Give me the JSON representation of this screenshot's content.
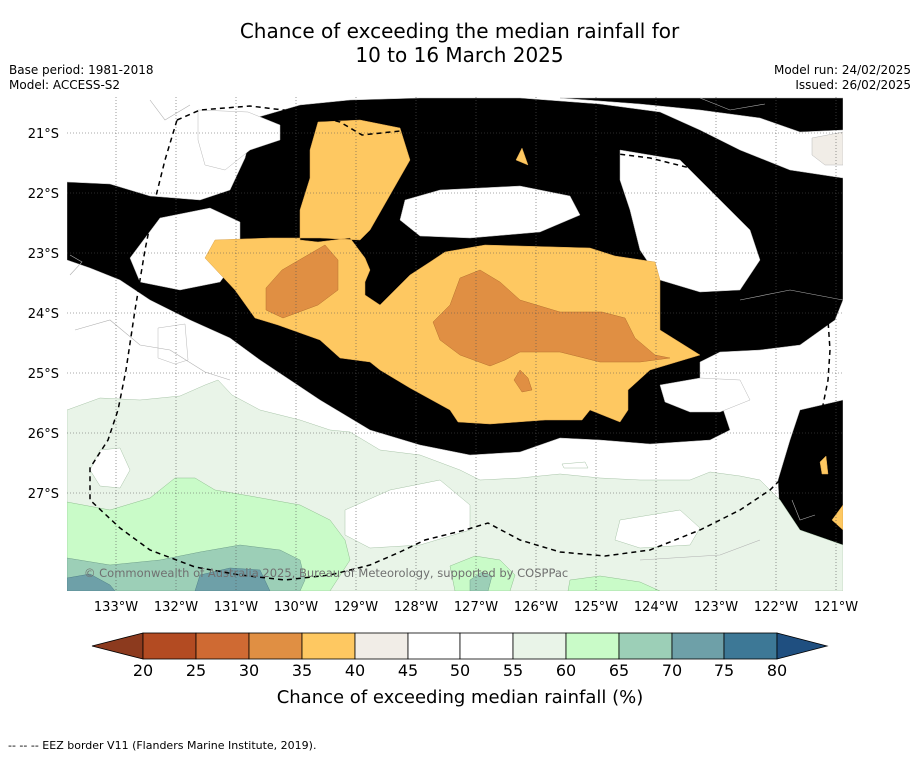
{
  "title": {
    "line1": "Chance of exceeding the median rainfall for",
    "line2": "10 to 16 March 2025"
  },
  "info_left": {
    "base_period": "Base period: 1981-2018",
    "model": "Model: ACCESS-S2"
  },
  "info_right": {
    "model_run": "Model run: 24/02/2025",
    "issued": "Issued: 26/02/2025"
  },
  "map": {
    "lat_labels": [
      "21°S",
      "22°S",
      "23°S",
      "24°S",
      "25°S",
      "26°S",
      "27°S"
    ],
    "lon_labels": [
      "133°W",
      "132°W",
      "131°W",
      "130°W",
      "129°W",
      "128°W",
      "127°W",
      "126°W",
      "125°W",
      "124°W",
      "123°W",
      "122°W",
      "121°W"
    ],
    "copyright": "© Commonwealth of Australia 2025, Bureau of Meteorology, supported by COSPPac",
    "colors": {
      "c20": "#8c3a1e",
      "c25": "#b34b22",
      "c30": "#cf6a33",
      "c35": "#e08f43",
      "c40": "#fec861",
      "c45": "#f1ede7",
      "c50": "#ffffff",
      "c55": "#ffffff",
      "c60": "#e9f4e8",
      "c65": "#c9fbc8",
      "c70": "#9ccfb7",
      "c75": "#6ea0a8",
      "c80": "#3d7896",
      "c_over": "#1f4f80"
    }
  },
  "colorbar": {
    "ticks": [
      "20",
      "25",
      "30",
      "35",
      "40",
      "45",
      "50",
      "55",
      "60",
      "65",
      "70",
      "75",
      "80"
    ],
    "label": "Chance of exceeding median rainfall (%)"
  },
  "footer": {
    "legend_text": "-- -- -- EEZ border V11 (Flanders Marine Institute, 2019)."
  }
}
